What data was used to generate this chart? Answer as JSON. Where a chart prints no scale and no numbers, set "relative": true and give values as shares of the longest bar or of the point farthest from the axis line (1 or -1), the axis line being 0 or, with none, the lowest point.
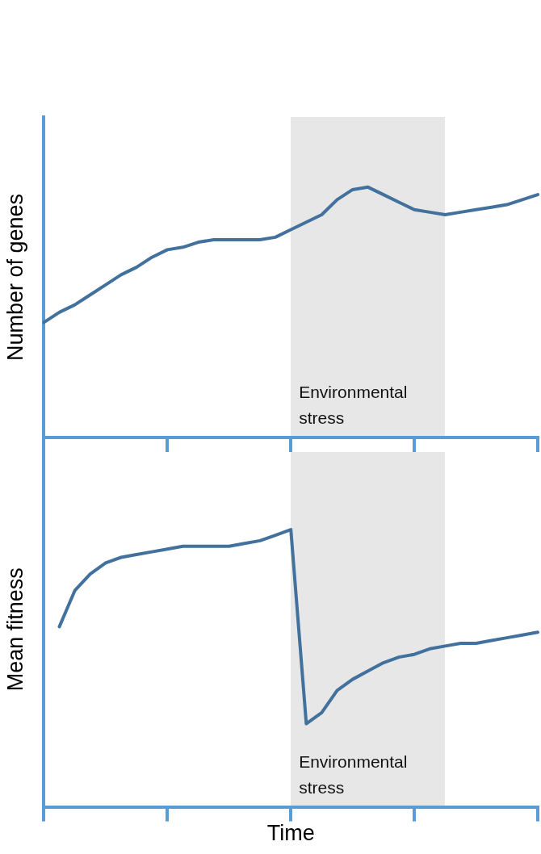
{
  "chart_data": [
    {
      "type": "line",
      "ylabel": "Number of genes",
      "relative": true,
      "grid": false,
      "legend": false,
      "tick_labels": false,
      "categories": [
        null,
        null,
        null,
        null,
        null,
        null,
        null,
        null,
        null,
        null,
        null,
        null,
        null,
        null,
        null,
        null,
        null,
        null,
        null,
        null,
        null,
        null,
        null,
        null,
        null,
        null,
        null,
        null,
        null,
        null,
        null,
        null,
        null
      ],
      "annotations": [
        "Environmental stress"
      ],
      "series": [
        {
          "color": "#41719c",
          "values": [
            0.46,
            0.5,
            0.53,
            0.57,
            0.61,
            0.65,
            0.68,
            0.72,
            0.75,
            0.76,
            0.78,
            0.79,
            0.79,
            0.79,
            0.79,
            0.8,
            0.83,
            0.86,
            0.89,
            0.95,
            0.99,
            1,
            0.97,
            0.94,
            0.91,
            0.9,
            0.89,
            0.9,
            0.91,
            0.92,
            0.93,
            0.95,
            0.97
          ]
        }
      ]
    },
    {
      "type": "line",
      "ylabel": "Mean fitness",
      "xlabel": "Time",
      "relative": true,
      "grid": false,
      "legend": false,
      "tick_labels": false,
      "categories": [
        null,
        null,
        null,
        null,
        null,
        null,
        null,
        null,
        null,
        null,
        null,
        null,
        null,
        null,
        null,
        null,
        null,
        null,
        null,
        null,
        null,
        null,
        null,
        null,
        null,
        null,
        null,
        null,
        null,
        null,
        null,
        null,
        null
      ],
      "annotations": [
        "Environmental stress"
      ],
      "series": [
        {
          "color": "#41719c",
          "values": [
            null,
            0.65,
            0.78,
            0.84,
            0.88,
            0.9,
            0.91,
            0.92,
            0.93,
            0.94,
            0.94,
            0.94,
            0.94,
            0.95,
            0.96,
            0.98,
            1,
            0.3,
            0.34,
            0.42,
            0.46,
            0.49,
            0.52,
            0.54,
            0.55,
            0.57,
            0.58,
            0.59,
            0.59,
            0.6,
            0.61,
            0.62,
            0.63
          ]
        }
      ]
    }
  ]
}
